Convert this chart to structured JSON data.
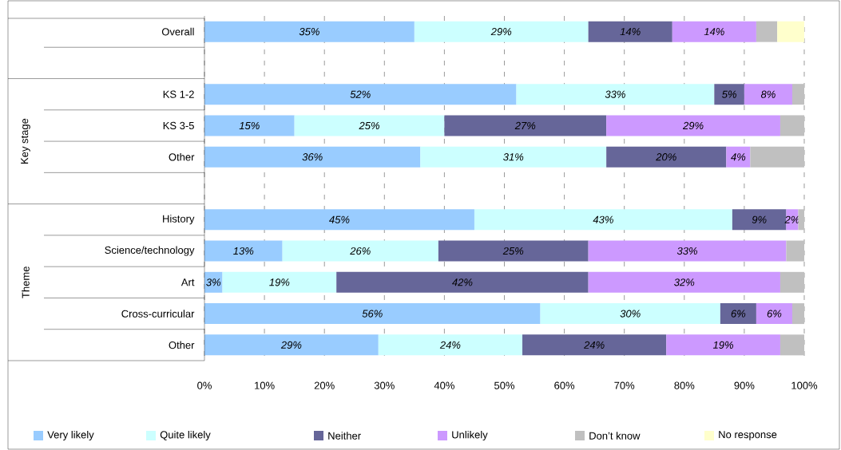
{
  "chart_data": {
    "type": "bar",
    "orientation": "horizontal",
    "stacked": true,
    "categories": [
      "Overall",
      null,
      "KS 1-2",
      "KS 3-5",
      "Other",
      null,
      "History",
      "Science/technology",
      "Art",
      "Cross-curricular",
      "Other"
    ],
    "series": [
      {
        "name": "Very likely",
        "color": "#99ccff",
        "values": [
          35,
          null,
          52,
          15,
          36,
          null,
          45,
          13,
          3,
          56,
          29
        ],
        "value_labels": [
          "35%",
          null,
          "52%",
          "15%",
          "36%",
          null,
          "45%",
          "13%",
          "3%",
          "56%",
          "29%"
        ]
      },
      {
        "name": "Quite likely",
        "color": "#ccffff",
        "values": [
          29,
          null,
          33,
          25,
          31,
          null,
          43,
          26,
          19,
          30,
          24
        ],
        "value_labels": [
          "29%",
          null,
          "33%",
          "25%",
          "31%",
          null,
          "43%",
          "26%",
          "19%",
          "30%",
          "24%"
        ]
      },
      {
        "name": "Neither",
        "color": "#666699",
        "values": [
          14,
          null,
          5,
          27,
          20,
          null,
          9,
          25,
          42,
          6,
          24
        ],
        "value_labels": [
          "14%",
          null,
          "5%",
          "27%",
          "20%",
          null,
          "9%",
          "25%",
          "42%",
          "6%",
          "24%"
        ]
      },
      {
        "name": "Unlikely",
        "color": "#cc99ff",
        "values": [
          14,
          null,
          8,
          29,
          4,
          null,
          2,
          33,
          32,
          6,
          19
        ],
        "value_labels": [
          "14%",
          null,
          "8%",
          "29%",
          "4%",
          null,
          "2%",
          "33%",
          "32%",
          "6%",
          "19%"
        ]
      },
      {
        "name": "Don’t know",
        "color": "#c0c0c0",
        "values": [
          3.5,
          null,
          2,
          4,
          9,
          null,
          1,
          3,
          4,
          2,
          4
        ]
      },
      {
        "name": "No response",
        "color": "#ffffcc",
        "values": [
          4.5,
          null,
          0,
          0,
          0,
          null,
          0,
          0,
          0,
          0,
          0
        ]
      }
    ],
    "xlim": [
      0,
      100
    ],
    "xticks": [
      {
        "value": 0,
        "label": "0%"
      },
      {
        "value": 10,
        "label": "10%"
      },
      {
        "value": 20,
        "label": "20%"
      },
      {
        "value": 30,
        "label": "30%"
      },
      {
        "value": 40,
        "label": "40%"
      },
      {
        "value": 50,
        "label": "50%"
      },
      {
        "value": 60,
        "label": "60%"
      },
      {
        "value": 70,
        "label": "70%"
      },
      {
        "value": 80,
        "label": "80%"
      },
      {
        "value": 90,
        "label": "90%"
      },
      {
        "value": 100,
        "label": "100%"
      }
    ],
    "grid": "x",
    "legend": "bottom",
    "annotations": [
      "Key stage",
      "Theme"
    ]
  }
}
